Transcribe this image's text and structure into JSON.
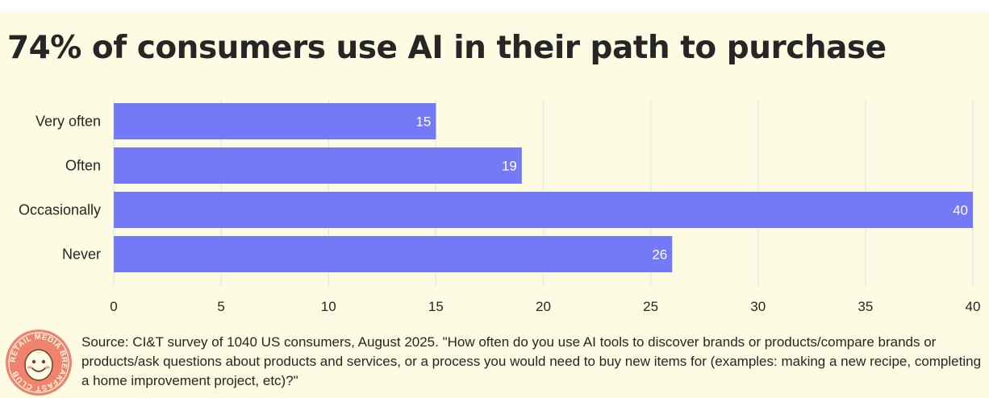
{
  "title": "74% of consumers use AI in their path to purchase",
  "source_note": "Source: CI&T survey of 1040 US consumers, August 2025. \"How often do you use AI tools to discover brands or products/compare brands or products/ask questions about products and services, or a process you would need to buy new items for (examples: making a new recipe, completing a home improvement project, etc)?\"",
  "logo": {
    "text": "RETAIL MEDIA BREAKFAST CLUB",
    "color": "#f0836e",
    "icon": "smiling-egg-mascot-icon"
  },
  "colors": {
    "background": "#fdfbe1",
    "bar": "#7479f5",
    "bar_label": "#ffffff",
    "text": "#262626",
    "grid": "#e6e6e6"
  },
  "chart_data": {
    "type": "bar",
    "orientation": "horizontal",
    "title": "74% of consumers use AI in their path to purchase",
    "xlabel": "",
    "ylabel": "",
    "categories": [
      "Very often",
      "Often",
      "Occasionally",
      "Never"
    ],
    "values": [
      15,
      19,
      40,
      26
    ],
    "xlim": [
      0,
      40
    ],
    "x_ticks": [
      0,
      5,
      10,
      15,
      20,
      25,
      30,
      35,
      40
    ],
    "data_labels": true,
    "grid": true,
    "legend": "none"
  }
}
